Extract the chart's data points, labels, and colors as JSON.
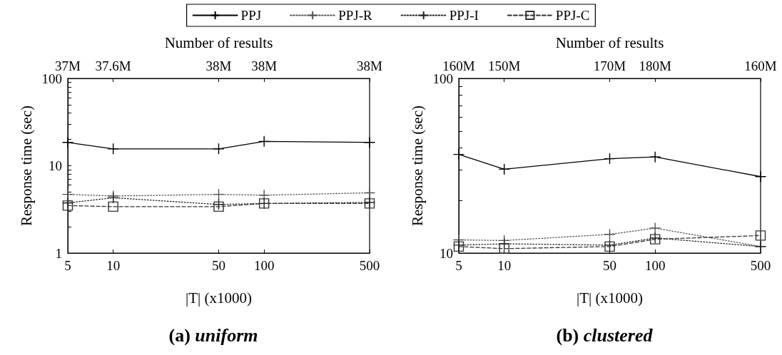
{
  "chart_data": [
    {
      "type": "line",
      "title": "(a) uniform",
      "xlabel": "|T| (x1000)",
      "ylabel": "Response time (sec)",
      "x2label": "Number of results",
      "log": "xy",
      "legend": "top",
      "grid": false,
      "x": [
        5,
        10,
        50,
        100,
        500
      ],
      "xlim": [
        5,
        500
      ],
      "xticks": [
        5,
        10,
        50,
        100,
        500
      ],
      "annotations": [
        "37M",
        "37.6M",
        "38M",
        "38M",
        "38M"
      ],
      "ylim": [
        1,
        100
      ],
      "yticks": [
        1,
        {
          "value": 2,
          "label": null
        },
        {
          "value": 3,
          "label": null
        },
        {
          "value": 4,
          "label": null
        },
        {
          "value": 5,
          "label": null
        },
        {
          "value": 6,
          "label": null
        },
        {
          "value": 7,
          "label": null
        },
        {
          "value": 8,
          "label": null
        },
        {
          "value": 9,
          "label": null
        },
        10,
        {
          "value": 20,
          "label": null
        },
        {
          "value": 30,
          "label": null
        },
        {
          "value": 40,
          "label": null
        },
        {
          "value": 50,
          "label": null
        },
        {
          "value": 60,
          "label": null
        },
        {
          "value": 70,
          "label": null
        },
        {
          "value": 80,
          "label": null
        },
        {
          "value": 90,
          "label": null
        },
        100
      ],
      "series": [
        {
          "name": "PPJ",
          "color": "#000000",
          "marker": "cross",
          "line_style": "solid",
          "values": [
            18.5,
            15.6,
            15.6,
            19,
            18.5
          ]
        },
        {
          "name": "PPJ-R",
          "color": "#555555",
          "marker": "cross",
          "line_style": "dotted",
          "values": [
            4.7,
            4.5,
            4.7,
            4.6,
            4.9
          ]
        },
        {
          "name": "PPJ-I",
          "color": "#222222",
          "marker": "cross",
          "line_style": "dotted",
          "values": [
            3.75,
            4.3,
            3.6,
            3.7,
            3.8
          ]
        },
        {
          "name": "PPJ-C",
          "color": "#333333",
          "marker": "square",
          "line_style": "dashed",
          "values": [
            3.5,
            3.4,
            3.4,
            3.7,
            3.7
          ]
        }
      ]
    },
    {
      "type": "line",
      "title": "(b) clustered",
      "xlabel": "|T| (x1000)",
      "ylabel": "Response time (sec)",
      "x2label": "Number of results",
      "log": "xy",
      "grid": false,
      "x": [
        5,
        10,
        50,
        100,
        500
      ],
      "xlim": [
        5,
        500
      ],
      "xticks": [
        5,
        10,
        50,
        100,
        500
      ],
      "annotations": [
        "160M",
        "150M",
        "170M",
        "180M",
        "160M"
      ],
      "ylim": [
        10,
        100
      ],
      "yticks": [
        10,
        {
          "value": 20,
          "label": null
        },
        {
          "value": 30,
          "label": null
        },
        {
          "value": 40,
          "label": null
        },
        {
          "value": 50,
          "label": null
        },
        {
          "value": 60,
          "label": null
        },
        {
          "value": 70,
          "label": null
        },
        {
          "value": 80,
          "label": null
        },
        {
          "value": 90,
          "label": null
        },
        100
      ],
      "series": [
        {
          "name": "PPJ",
          "color": "#000000",
          "marker": "cross",
          "line_style": "solid",
          "values": [
            36.7,
            30.2,
            34.7,
            35.5,
            27.4
          ]
        },
        {
          "name": "PPJ-R",
          "color": "#555555",
          "marker": "cross",
          "line_style": "dotted",
          "values": [
            11.9,
            11.8,
            12.8,
            13.9,
            10.9
          ]
        },
        {
          "name": "PPJ-I",
          "color": "#222222",
          "marker": "cross",
          "line_style": "dotted",
          "values": [
            11.1,
            11.3,
            11.1,
            12.2,
            10.9
          ]
        },
        {
          "name": "PPJ-C",
          "color": "#333333",
          "marker": "square",
          "line_style": "dashed",
          "values": [
            10.9,
            10.6,
            10.9,
            12.0,
            12.6
          ]
        }
      ]
    }
  ]
}
